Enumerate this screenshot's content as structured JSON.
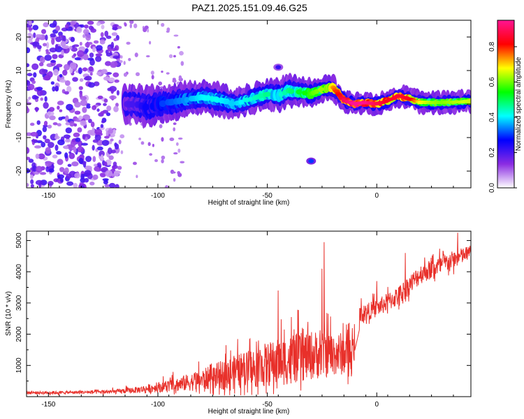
{
  "title": "PAZ1.2025.151.09.46.G25",
  "chart_data": [
    {
      "type": "heatmap",
      "name": "spectrogram",
      "xlabel": "Height of straight line (km)",
      "ylabel": "Frequency (Hz)",
      "xlim": [
        -160,
        43
      ],
      "ylim": [
        -25,
        25
      ],
      "xticks": [
        -150,
        -100,
        -50,
        0
      ],
      "yticks": [
        -20,
        -10,
        0,
        10,
        20
      ],
      "xtick_labels": [
        "-150",
        "-100",
        "-50",
        "0"
      ],
      "ytick_labels": [
        "-20",
        "-10",
        "0",
        "10",
        "20"
      ],
      "colorbar": {
        "label": "Normalized spectral amplitude",
        "range": [
          0,
          0.95
        ],
        "ticks": [
          0.0,
          0.2,
          0.4,
          0.6,
          0.8
        ],
        "tick_labels": [
          "0.0",
          "0.2",
          "0.4",
          "0.6",
          "0.8"
        ],
        "stops": [
          "#ffffff",
          "#8a2be2",
          "#0000ff",
          "#00ffff",
          "#00ff00",
          "#ffff00",
          "#ff0000",
          "#ff1493"
        ]
      },
      "noise_region": {
        "x_range": [
          -160,
          -118
        ],
        "y_range": [
          -25,
          25
        ],
        "amplitude": [
          0.05,
          0.22
        ]
      },
      "signal_track": {
        "x": [
          -115,
          -110,
          -105,
          -100,
          -95,
          -90,
          -85,
          -80,
          -75,
          -70,
          -65,
          -60,
          -55,
          -50,
          -45,
          -40,
          -35,
          -30,
          -25,
          -20,
          -15,
          -10,
          -5,
          0,
          5,
          10,
          15,
          20,
          25,
          30,
          35,
          40,
          43
        ],
        "freq": [
          0,
          0,
          -1,
          0,
          0.5,
          1,
          1.5,
          2,
          1.5,
          1,
          0,
          1,
          2,
          3,
          2.5,
          4,
          3.5,
          3,
          4.5,
          5,
          1,
          0,
          0.5,
          0,
          1,
          2.5,
          1.5,
          0.5,
          0.5,
          0.5,
          0.5,
          0.8,
          0.8
        ],
        "amplitude": [
          0.18,
          0.2,
          0.25,
          0.28,
          0.3,
          0.32,
          0.35,
          0.38,
          0.4,
          0.38,
          0.36,
          0.4,
          0.42,
          0.45,
          0.4,
          0.45,
          0.5,
          0.55,
          0.6,
          0.7,
          0.85,
          0.92,
          0.9,
          0.85,
          0.8,
          0.82,
          0.8,
          0.65,
          0.6,
          0.58,
          0.6,
          0.62,
          0.62
        ],
        "width_hz": [
          4,
          4,
          4.5,
          4,
          4,
          4,
          3.5,
          3.5,
          3.5,
          3.5,
          3,
          3,
          3,
          3,
          3.5,
          3.5,
          3,
          3,
          2.5,
          2.5,
          2,
          2,
          2,
          2,
          2,
          2,
          2,
          2,
          2,
          2,
          2,
          2,
          2
        ]
      },
      "features": [
        {
          "x": -30,
          "freq": -17,
          "amplitude": 0.3
        },
        {
          "x": -45,
          "freq": 11,
          "amplitude": 0.22
        }
      ]
    },
    {
      "type": "line",
      "name": "snr",
      "xlabel": "Height of straight line (km)",
      "ylabel": "SNR (10 * v/v)",
      "xlim": [
        -160,
        43
      ],
      "ylim": [
        0,
        5300
      ],
      "xticks": [
        -150,
        -100,
        -50,
        0
      ],
      "yticks": [
        1000,
        2000,
        3000,
        4000,
        5000
      ],
      "xtick_labels": [
        "-150",
        "-100",
        "-50",
        "0"
      ],
      "ytick_labels": [
        "1000",
        "2000",
        "3000",
        "4000",
        "5000"
      ],
      "line_color": "#e8302a",
      "gap": [
        -10,
        -8
      ],
      "trend": {
        "x": [
          -160,
          -140,
          -120,
          -110,
          -100,
          -90,
          -80,
          -70,
          -60,
          -50,
          -40,
          -30,
          -20,
          -10,
          -8,
          0,
          10,
          20,
          30,
          43
        ],
        "mean": [
          120,
          130,
          150,
          200,
          280,
          380,
          500,
          650,
          800,
          950,
          1100,
          1250,
          1300,
          1300,
          2600,
          2800,
          3200,
          3900,
          4200,
          4600
        ],
        "spread": [
          60,
          60,
          90,
          130,
          200,
          300,
          420,
          600,
          750,
          900,
          1000,
          1000,
          900,
          800,
          350,
          350,
          400,
          400,
          400,
          300
        ]
      },
      "peaks": [
        {
          "x": -24,
          "y": 4950
        },
        {
          "x": -25,
          "y": 4100
        },
        {
          "x": -45,
          "y": 3400
        },
        {
          "x": 13,
          "y": 4600
        },
        {
          "x": 37,
          "y": 5250
        },
        {
          "x": 0,
          "y": 3700
        }
      ]
    }
  ]
}
